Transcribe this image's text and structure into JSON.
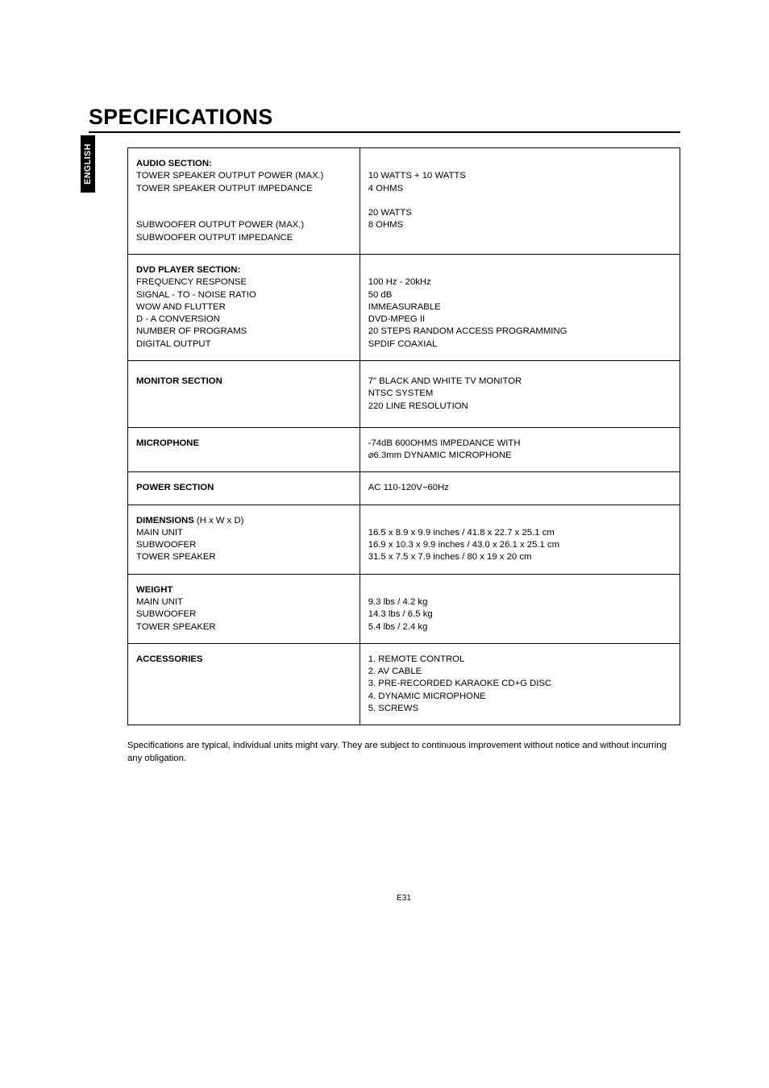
{
  "typography": {
    "title_fontsize_pt": 20,
    "body_fontsize_pt": 8.5,
    "sidetab_fontsize_pt": 8,
    "pagenum_fontsize_pt": 7.5
  },
  "colors": {
    "text": "#000000",
    "background": "#ffffff",
    "tab_bg": "#000000",
    "tab_text": "#ffffff",
    "rule": "#000000",
    "border": "#000000"
  },
  "sidetab": "ENGLISH",
  "title": "SPECIFICATIONS",
  "rows": [
    {
      "left": {
        "heading": "AUDIO SECTION:",
        "lines": [
          "TOWER SPEAKER OUTPUT POWER (MAX.)",
          "TOWER SPEAKER OUTPUT IMPEDANCE",
          "",
          "SUBWOOFER OUTPUT POWER (MAX.)",
          "SUBWOOFER OUTPUT IMPEDANCE"
        ]
      },
      "right": [
        "",
        "10 WATTS + 10 WATTS",
        "4 OHMS",
        "",
        "20 WATTS",
        "8 OHMS"
      ]
    },
    {
      "left": {
        "heading": "DVD PLAYER SECTION:",
        "lines": [
          "FREQUENCY RESPONSE",
          "SIGNAL - TO - NOISE RATIO",
          "WOW AND FLUTTER",
          "D - A CONVERSION",
          "NUMBER OF PROGRAMS",
          "DIGITAL OUTPUT"
        ]
      },
      "right": [
        "",
        "100 Hz - 20kHz",
        "50 dB",
        "IMMEASURABLE",
        "DVD-MPEG II",
        "20 STEPS RANDOM ACCESS PROGRAMMING",
        "SPDIF COAXIAL"
      ]
    },
    {
      "left": {
        "heading": "MONITOR SECTION",
        "lines": []
      },
      "right": [
        "7\" BLACK AND WHITE TV MONITOR",
        "NTSC SYSTEM",
        "220 LINE RESOLUTION"
      ],
      "pad": "18px 10px"
    },
    {
      "left": {
        "heading": "MICROPHONE",
        "lines": []
      },
      "right": [
        "-74dB 600OHMS IMPEDANCE WITH",
        "⌀6.3mm DYNAMIC MICROPHONE"
      ]
    },
    {
      "left": {
        "heading": "POWER SECTION",
        "lines": []
      },
      "right": [
        "AC 110-120V~60Hz"
      ]
    },
    {
      "left": {
        "heading_inline": "DIMENSIONS",
        "heading_after": " (H x W x D)",
        "lines": [
          "MAIN UNIT",
          "SUBWOOFER",
          "TOWER SPEAKER"
        ]
      },
      "right": [
        "",
        "16.5 x 8.9 x 9.9 inches / 41.8 x 22.7 x 25.1 cm",
        "16.9 x 10.3 x 9.9 inches / 43.0 x 26.1 x 25.1 cm",
        "31.5 x 7.5 x 7.9 inches / 80 x 19 x 20 cm"
      ]
    },
    {
      "left": {
        "heading": "WEIGHT",
        "lines": [
          "MAIN UNIT",
          "SUBWOOFER",
          "TOWER SPEAKER"
        ]
      },
      "right": [
        "",
        "9.3 lbs / 4.2 kg",
        "14.3 lbs / 6.5 kg",
        "5.4 lbs / 2.4 kg"
      ]
    },
    {
      "left": {
        "heading": "ACCESSORIES",
        "lines": []
      },
      "right": [
        "1.  REMOTE CONTROL",
        "2.  AV CABLE",
        "3.  PRE-RECORDED KARAOKE CD+G DISC",
        "4.  DYNAMIC MICROPHONE",
        "5.  SCREWS"
      ]
    }
  ],
  "footnote": "Specifications are typical, individual units might vary. They are subject to continuous improvement without notice and without incurring any obligation.",
  "pagenum": "E31"
}
